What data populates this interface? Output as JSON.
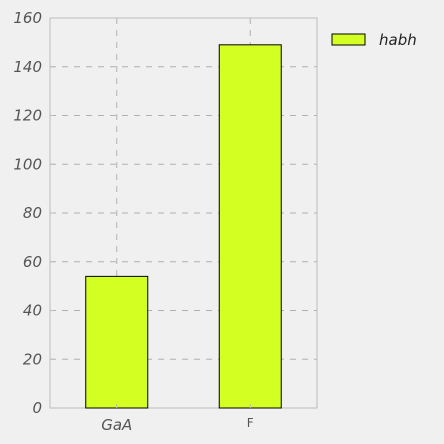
{
  "chart_data": {
    "type": "bar",
    "categories": [
      "GaA",
      "F"
    ],
    "category_label_style": [
      "italic",
      "normal"
    ],
    "series": [
      {
        "name": "habh",
        "values": [
          54,
          149
        ],
        "color": "#d4ff22"
      }
    ],
    "ylim": [
      0,
      160
    ],
    "yticks": [
      0,
      20,
      40,
      60,
      80,
      100,
      120,
      140,
      160
    ],
    "ytick_labels": [
      "0",
      "20",
      "40",
      "60",
      "80",
      "100",
      "120",
      "140",
      "160"
    ],
    "grid": true,
    "grid_style": "dashed",
    "legend_position": "upper-right-outside",
    "title": "",
    "xlabel": "",
    "ylabel": "",
    "colors": {
      "background": "#f0f0f0",
      "plot_background": "#f0f0f0",
      "axis": "#bbbbbb",
      "grid": "#b0b0b0",
      "bar_edge": "#000000"
    }
  }
}
